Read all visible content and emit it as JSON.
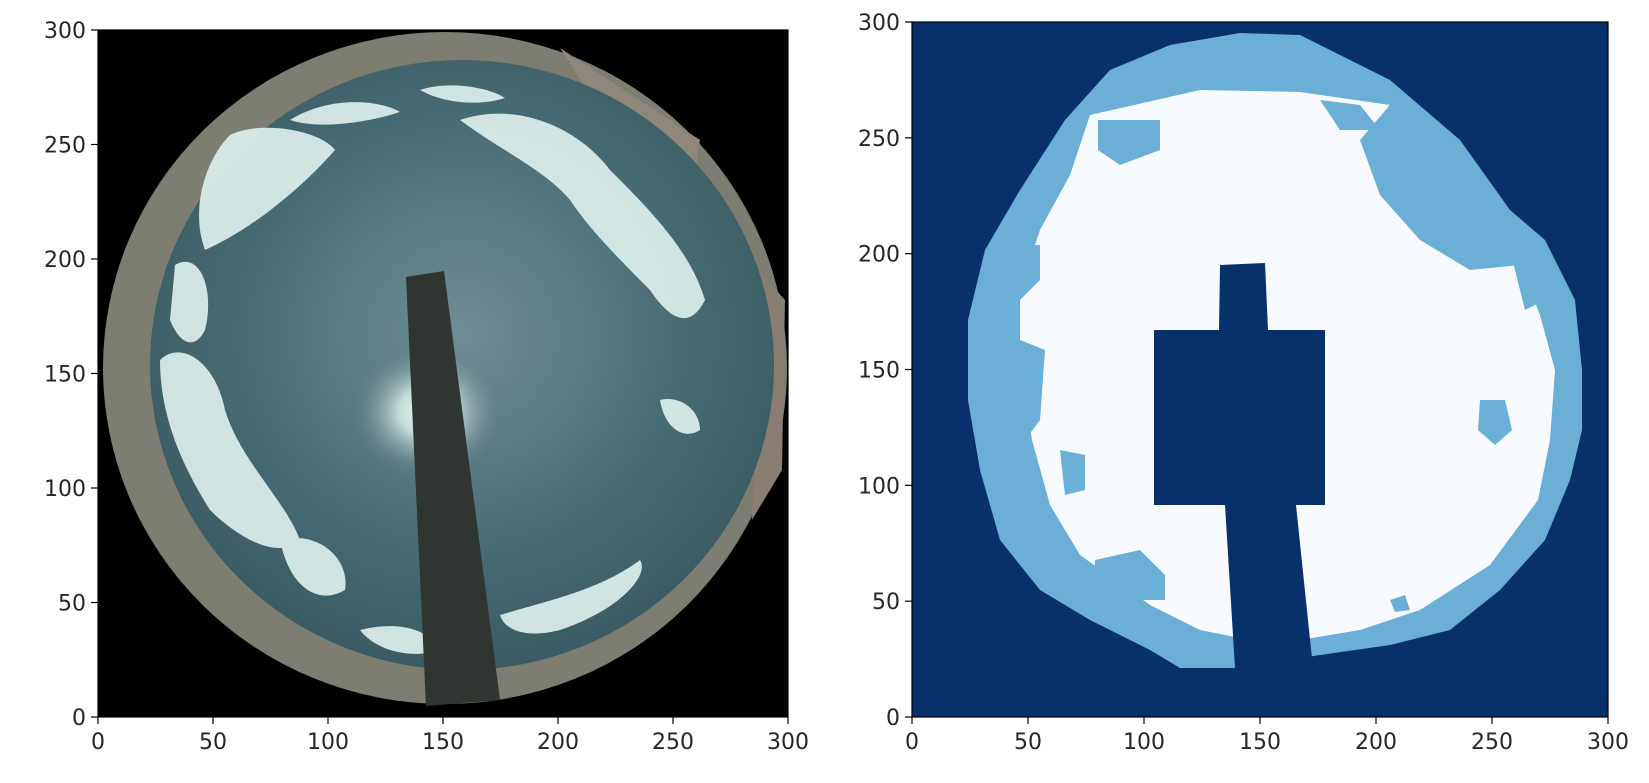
{
  "chart_data": [
    {
      "type": "image",
      "title": "",
      "xlabel": "",
      "ylabel": "",
      "xlim": [
        0,
        300
      ],
      "ylim": [
        0,
        300
      ],
      "xticks": [
        0,
        50,
        100,
        150,
        200,
        250,
        300
      ],
      "yticks": [
        0,
        50,
        100,
        150,
        200,
        250,
        300
      ],
      "content": "all-sky fisheye camera image",
      "colors": {
        "background": "#000000",
        "sky": "#4d6f77",
        "cloud": "#e3f2ee",
        "rim": "#8a8a80",
        "shadowband": "#2f3530",
        "sun_glow": "#f4fbf8"
      }
    },
    {
      "type": "heatmap",
      "title": "",
      "xlabel": "",
      "ylabel": "",
      "xlim": [
        0,
        300
      ],
      "ylim": [
        0,
        300
      ],
      "xticks": [
        0,
        50,
        100,
        150,
        200,
        250,
        300
      ],
      "yticks": [
        0,
        50,
        100,
        150,
        200,
        250,
        300
      ],
      "colormap": "Blues",
      "classes": [
        {
          "value": 0,
          "color": "#08306b"
        },
        {
          "value": 1,
          "color": "#6baed6"
        },
        {
          "value": 2,
          "color": "#f7fbff"
        }
      ],
      "masked_rectangle": {
        "x": [
          104,
          178
        ],
        "y": [
          92,
          167
        ]
      },
      "masked_top_block": {
        "x": [
          134,
          155
        ],
        "y": [
          167,
          196
        ]
      },
      "masked_pole": {
        "x_top": [
          138,
          167
        ],
        "x_bottom": [
          144,
          176
        ],
        "y": [
          22,
          92
        ]
      },
      "sky_region_center": [
        160,
        165
      ],
      "sky_region_radius": 135
    }
  ]
}
